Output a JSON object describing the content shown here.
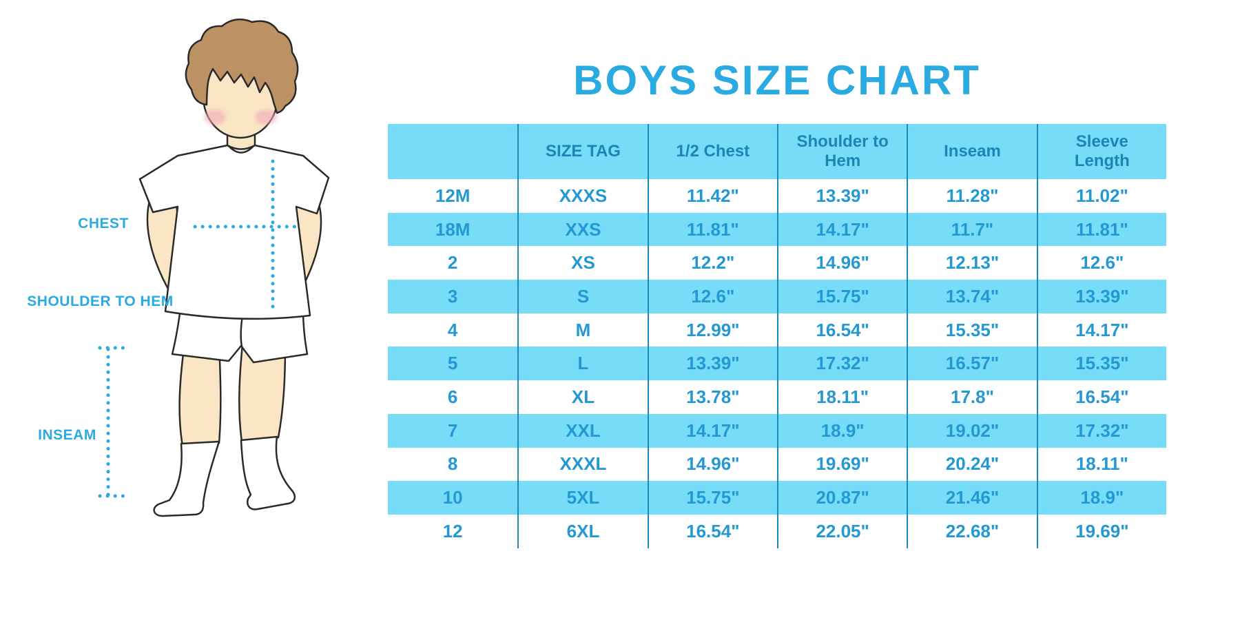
{
  "title": "BOYS SIZE CHART",
  "measurement_labels": {
    "chest": "CHEST",
    "shoulder_to_hem": "SHOULDER TO HEM",
    "inseam": "INSEAM"
  },
  "colors": {
    "accent": "#29ABE2",
    "tableText": "#2498D2",
    "headerText": "#1D85B6",
    "rowHighlight": "#76DCF7",
    "divider": "#1B89BC",
    "skin": "#FAE6C5",
    "hair": "#BC9265",
    "cheek": "#F2A8BC",
    "outline": "#2A2A2A"
  },
  "table": {
    "columns": [
      "",
      "SIZE TAG",
      "1/2 Chest",
      "Shoulder to Hem",
      "Inseam",
      "Sleeve Length"
    ],
    "rows": [
      [
        "12M",
        "XXXS",
        "11.42\"",
        "13.39\"",
        "11.28\"",
        "11.02\""
      ],
      [
        "18M",
        "XXS",
        "11.81\"",
        "14.17\"",
        "11.7\"",
        "11.81\""
      ],
      [
        "2",
        "XS",
        "12.2\"",
        "14.96\"",
        "12.13\"",
        "12.6\""
      ],
      [
        "3",
        "S",
        "12.6\"",
        "15.75\"",
        "13.74\"",
        "13.39\""
      ],
      [
        "4",
        "M",
        "12.99\"",
        "16.54\"",
        "15.35\"",
        "14.17\""
      ],
      [
        "5",
        "L",
        "13.39\"",
        "17.32\"",
        "16.57\"",
        "15.35\""
      ],
      [
        "6",
        "XL",
        "13.78\"",
        "18.11\"",
        "17.8\"",
        "16.54\""
      ],
      [
        "7",
        "XXL",
        "14.17\"",
        "18.9\"",
        "19.02\"",
        "17.32\""
      ],
      [
        "8",
        "XXXL",
        "14.96\"",
        "19.69\"",
        "20.24\"",
        "18.11\""
      ],
      [
        "10",
        "5XL",
        "15.75\"",
        "20.87\"",
        "21.46\"",
        "18.9\""
      ],
      [
        "12",
        "6XL",
        "16.54\"",
        "22.05\"",
        "22.68\"",
        "19.69\""
      ]
    ]
  }
}
